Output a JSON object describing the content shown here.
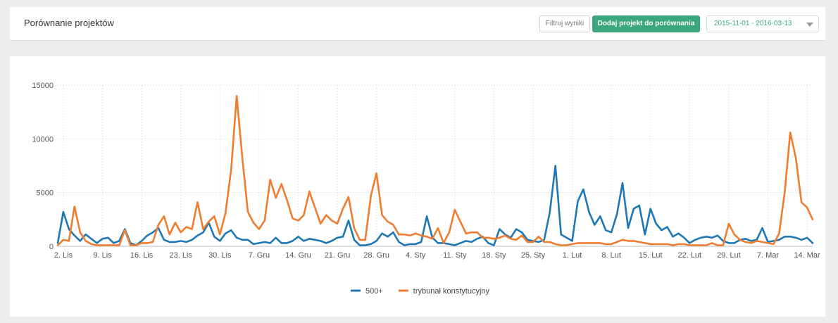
{
  "header": {
    "title": "Porównanie projektów",
    "filter_label": "Filtruj wyniki",
    "add_label": "Dodaj projekt do porównania",
    "date_range": "2015-11-01 - 2016-03-13"
  },
  "colors": {
    "accent": "#3aa77f",
    "series_blue": "#1f77b4",
    "series_orange": "#ef7d31"
  },
  "chart_data": {
    "type": "line",
    "title": "",
    "xlabel": "",
    "ylabel": "",
    "ylim": [
      0,
      15000
    ],
    "yticks": [
      0,
      5000,
      10000,
      15000
    ],
    "grid": true,
    "legend_position": "bottom",
    "x_tick_labels": [
      {
        "day": 1,
        "label": "2. Lis"
      },
      {
        "day": 8,
        "label": "9. Lis"
      },
      {
        "day": 15,
        "label": "16. Lis"
      },
      {
        "day": 22,
        "label": "23. Lis"
      },
      {
        "day": 29,
        "label": "30. Lis"
      },
      {
        "day": 36,
        "label": "7. Gru"
      },
      {
        "day": 43,
        "label": "14. Gru"
      },
      {
        "day": 50,
        "label": "21. Gru"
      },
      {
        "day": 57,
        "label": "28. Gru"
      },
      {
        "day": 64,
        "label": "4. Sty"
      },
      {
        "day": 71,
        "label": "11. Sty"
      },
      {
        "day": 78,
        "label": "18. Sty"
      },
      {
        "day": 85,
        "label": "25. Sty"
      },
      {
        "day": 92,
        "label": "1. Lut"
      },
      {
        "day": 99,
        "label": "8. Lut"
      },
      {
        "day": 106,
        "label": "15. Lut"
      },
      {
        "day": 113,
        "label": "22. Lut"
      },
      {
        "day": 120,
        "label": "29. Lut"
      },
      {
        "day": 127,
        "label": "7. Mar"
      },
      {
        "day": 134,
        "label": "14. Mar"
      }
    ],
    "series": [
      {
        "name": "500+",
        "color": "#1f77b4",
        "values": [
          300,
          3200,
          1600,
          1000,
          500,
          1100,
          700,
          300,
          700,
          800,
          300,
          500,
          1600,
          300,
          100,
          500,
          1000,
          1300,
          1700,
          600,
          400,
          400,
          500,
          400,
          600,
          1000,
          1300,
          2200,
          900,
          500,
          1200,
          1500,
          800,
          600,
          600,
          200,
          300,
          400,
          300,
          800,
          300,
          300,
          500,
          900,
          500,
          700,
          600,
          500,
          300,
          500,
          800,
          900,
          2400,
          600,
          100,
          100,
          200,
          500,
          1200,
          900,
          1300,
          400,
          100,
          200,
          200,
          400,
          2800,
          800,
          300,
          300,
          200,
          100,
          300,
          500,
          400,
          700,
          900,
          300,
          100,
          1600,
          1100,
          800,
          1600,
          1300,
          600,
          500,
          400,
          600,
          3200,
          7500,
          1100,
          800,
          500,
          4200,
          5300,
          3200,
          2000,
          2800,
          1500,
          1300,
          3000,
          5900,
          1700,
          3500,
          3800,
          1100,
          3500,
          2100,
          1500,
          1800,
          900,
          1200,
          800,
          300,
          600,
          800,
          900,
          800,
          1000,
          500,
          300,
          300,
          600,
          700,
          500,
          600,
          1700,
          400,
          500,
          600,
          900,
          900,
          800,
          600,
          800,
          300
        ]
      },
      {
        "name": "trybunał konstytucyjny",
        "color": "#ef7d31",
        "values": [
          100,
          600,
          500,
          3700,
          1300,
          500,
          200,
          100,
          100,
          100,
          100,
          100,
          1500,
          100,
          100,
          300,
          300,
          400,
          2000,
          2800,
          1100,
          2200,
          1300,
          1800,
          1600,
          4100,
          1600,
          2300,
          2800,
          1100,
          3100,
          7100,
          14000,
          8300,
          3200,
          2200,
          1600,
          2400,
          6200,
          4500,
          5800,
          4300,
          2600,
          2400,
          2900,
          5100,
          3600,
          2100,
          2900,
          2400,
          2100,
          3500,
          4600,
          1700,
          600,
          600,
          4700,
          6800,
          2900,
          2300,
          2000,
          1100,
          1100,
          1000,
          1200,
          1000,
          900,
          700,
          1700,
          300,
          1300,
          3400,
          2300,
          1200,
          1300,
          1300,
          800,
          800,
          700,
          800,
          1000,
          700,
          600,
          1000,
          400,
          400,
          900,
          400,
          400,
          200,
          100,
          100,
          200,
          300,
          300,
          300,
          300,
          300,
          200,
          200,
          400,
          600,
          500,
          500,
          400,
          300,
          200,
          200,
          200,
          200,
          100,
          200,
          200,
          100,
          100,
          100,
          100,
          300,
          100,
          100,
          2100,
          1100,
          600,
          400,
          300,
          500,
          400,
          300,
          200,
          1200,
          5000,
          10600,
          8200,
          4100,
          3600,
          2500
        ]
      }
    ]
  }
}
